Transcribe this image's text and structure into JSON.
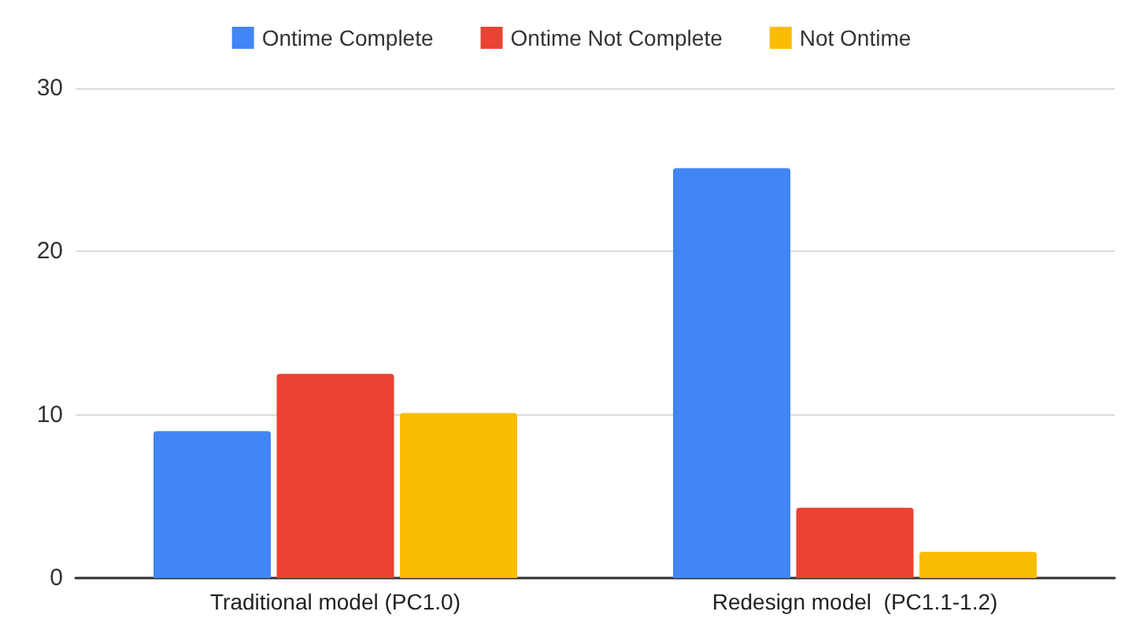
{
  "chart_data": {
    "type": "bar",
    "categories": [
      "Traditional model (PC1.0)",
      "Redesign model  (PC1.1-1.2)"
    ],
    "series": [
      {
        "name": "Ontime Complete",
        "color": "#4285f4",
        "values": [
          9.0,
          25.1
        ]
      },
      {
        "name": "Ontime Not Complete",
        "color": "#ea4335",
        "values": [
          12.5,
          4.3
        ]
      },
      {
        "name": "Not Ontime",
        "color": "#fbbc04",
        "values": [
          10.1,
          1.6
        ]
      }
    ],
    "ylim": [
      0,
      30
    ],
    "yticks": [
      0,
      10,
      20,
      30
    ],
    "grid": "y",
    "legend": "top"
  }
}
